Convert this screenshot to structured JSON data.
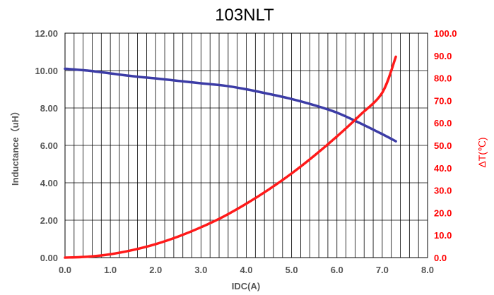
{
  "chart_data": {
    "type": "line",
    "title": "103NLT",
    "xlabel": "IDC(A)",
    "ylabel": "Inductance（uH）",
    "y2label": "ΔT(℃)",
    "xlim": [
      0,
      8
    ],
    "ylim": [
      0,
      12
    ],
    "y2lim": [
      0,
      100
    ],
    "x_ticks": [
      "0.0",
      "1.0",
      "2.0",
      "3.0",
      "4.0",
      "5.0",
      "6.0",
      "7.0",
      "8.0"
    ],
    "y_ticks": [
      "0.00",
      "2.00",
      "4.00",
      "6.00",
      "8.00",
      "10.00",
      "12.00"
    ],
    "y2_ticks": [
      "0.0",
      "10.0",
      "20.0",
      "30.0",
      "40.0",
      "50.0",
      "60.0",
      "70.0",
      "80.0",
      "90.0",
      "100.0"
    ],
    "grid": "vertical lines every 0.2 A, horizontal lines at each left-axis tick",
    "series": [
      {
        "axis": "left",
        "color": "#3c3ca6",
        "x": [
          0.0,
          0.5,
          1.0,
          1.5,
          2.0,
          2.5,
          3.0,
          3.5,
          4.0,
          4.5,
          5.0,
          5.5,
          6.0,
          6.5,
          7.0,
          7.3
        ],
        "values": [
          10.1,
          10.0,
          9.85,
          9.7,
          9.58,
          9.45,
          9.32,
          9.2,
          9.0,
          8.75,
          8.48,
          8.15,
          7.75,
          7.2,
          6.6,
          6.22
        ]
      },
      {
        "axis": "right",
        "color": "#ff1a1a",
        "x": [
          0.0,
          0.5,
          1.0,
          1.5,
          2.0,
          2.5,
          3.0,
          3.5,
          4.0,
          4.5,
          5.0,
          5.5,
          6.0,
          6.5,
          7.0,
          7.3
        ],
        "values": [
          0,
          0.4,
          1.5,
          3.4,
          6.0,
          9.4,
          13.5,
          18.3,
          24.0,
          30.4,
          37.5,
          45.4,
          54.0,
          63.3,
          73.5,
          89.5
        ]
      }
    ]
  }
}
